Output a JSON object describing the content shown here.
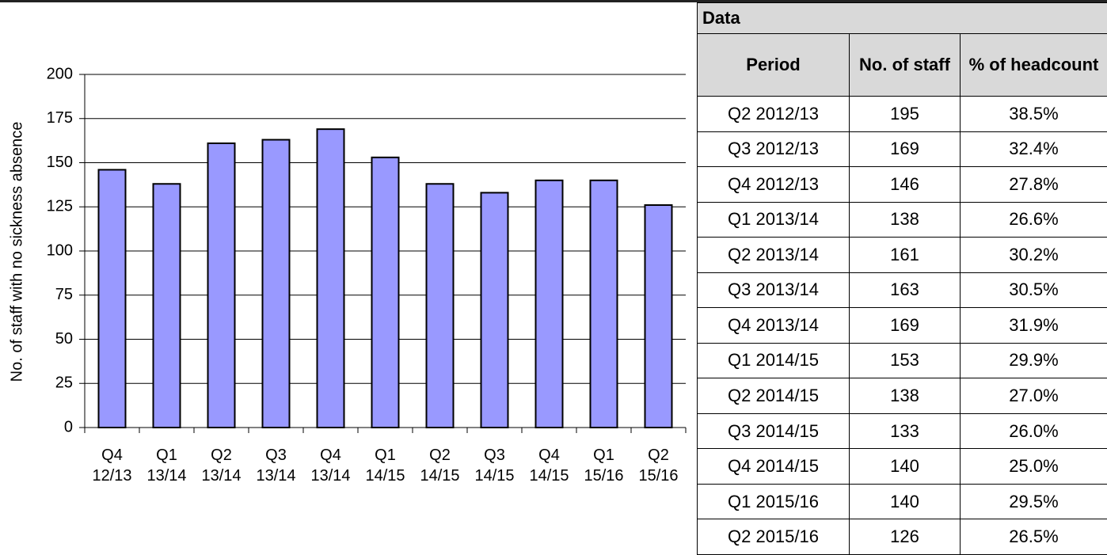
{
  "chart_data": {
    "type": "bar",
    "y_label": "No. of staff with no sickness absence",
    "categories": [
      "Q4 12/13",
      "Q1 13/14",
      "Q2 13/14",
      "Q3 13/14",
      "Q4 13/14",
      "Q1 14/15",
      "Q2 14/15",
      "Q3 14/15",
      "Q4 14/15",
      "Q1 15/16",
      "Q2 15/16"
    ],
    "values": [
      146,
      138,
      161,
      163,
      169,
      153,
      138,
      133,
      140,
      140,
      126
    ],
    "color": "#9999ff",
    "ylim": [
      0,
      200
    ],
    "yticks": [
      0,
      25,
      50,
      75,
      100,
      125,
      150,
      175,
      200
    ],
    "grid": true
  },
  "table": {
    "title": "Data",
    "columns": [
      "Period",
      "No. of staff",
      "% of headcount"
    ],
    "rows": [
      [
        "Q2 2012/13",
        195,
        "38.5%"
      ],
      [
        "Q3 2012/13",
        169,
        "32.4%"
      ],
      [
        "Q4 2012/13",
        146,
        "27.8%"
      ],
      [
        "Q1 2013/14",
        138,
        "26.6%"
      ],
      [
        "Q2 2013/14",
        161,
        "30.2%"
      ],
      [
        "Q3 2013/14",
        163,
        "30.5%"
      ],
      [
        "Q4 2013/14",
        169,
        "31.9%"
      ],
      [
        "Q1 2014/15",
        153,
        "29.9%"
      ],
      [
        "Q2 2014/15",
        138,
        "27.0%"
      ],
      [
        "Q3 2014/15",
        133,
        "26.0%"
      ],
      [
        "Q4 2014/15",
        140,
        "25.0%"
      ],
      [
        "Q1 2015/16",
        140,
        "29.5%"
      ],
      [
        "Q2 2015/16",
        126,
        "26.5%"
      ]
    ]
  }
}
